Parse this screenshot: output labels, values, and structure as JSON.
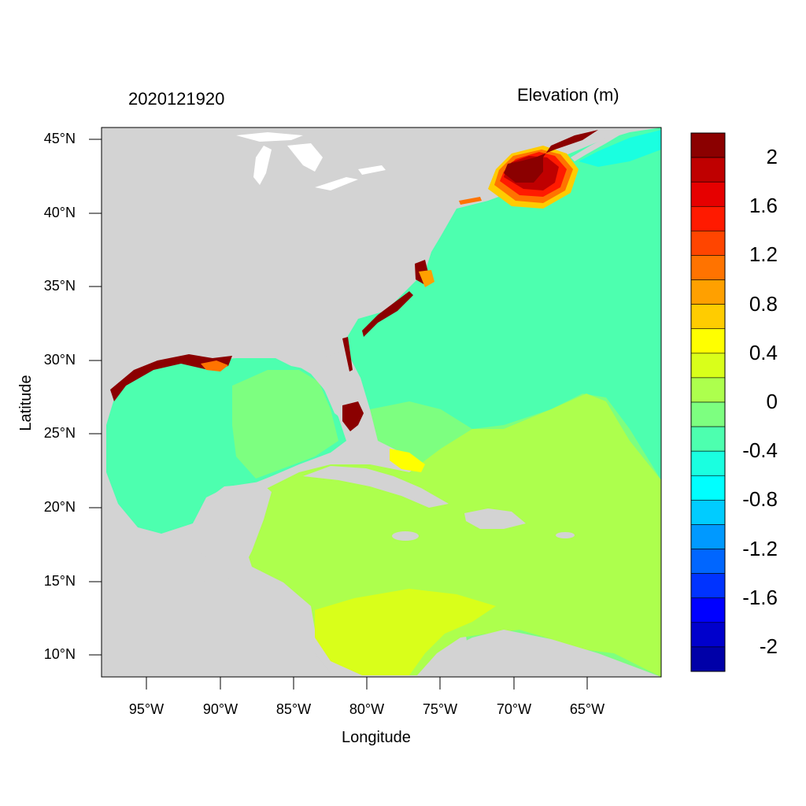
{
  "titles": {
    "left": "2020121920",
    "right": "Elevation (m)"
  },
  "axes": {
    "xlabel": "Longitude",
    "ylabel": "Latitude",
    "lat_ticks": [
      "45°N",
      "40°N",
      "35°N",
      "30°N",
      "25°N",
      "20°N",
      "15°N",
      "10°N"
    ],
    "lon_ticks": [
      "95°W",
      "90°W",
      "85°W",
      "80°W",
      "75°W",
      "70°W",
      "65°W"
    ]
  },
  "colorbar": {
    "labels": [
      "2",
      "1.6",
      "1.2",
      "0.8",
      "0.4",
      "0",
      "-0.4",
      "-0.8",
      "-1.2",
      "-1.6",
      "-2"
    ],
    "colors": [
      "#8b0000",
      "#bf0000",
      "#e60000",
      "#ff1a00",
      "#ff4500",
      "#ff7300",
      "#ffa000",
      "#ffcc00",
      "#ffff00",
      "#d9ff1a",
      "#adff4d",
      "#7dff80",
      "#4dffaf",
      "#1affe0",
      "#00ffff",
      "#00ccff",
      "#0099ff",
      "#0066ff",
      "#0033ff",
      "#0000ff",
      "#0000cc",
      "#0000a8"
    ]
  },
  "colors": {
    "land": "#d3d3d3",
    "water_neutral": "#adff4d",
    "water_low": "#4dffaf",
    "surge_high": "#8b0000"
  }
}
